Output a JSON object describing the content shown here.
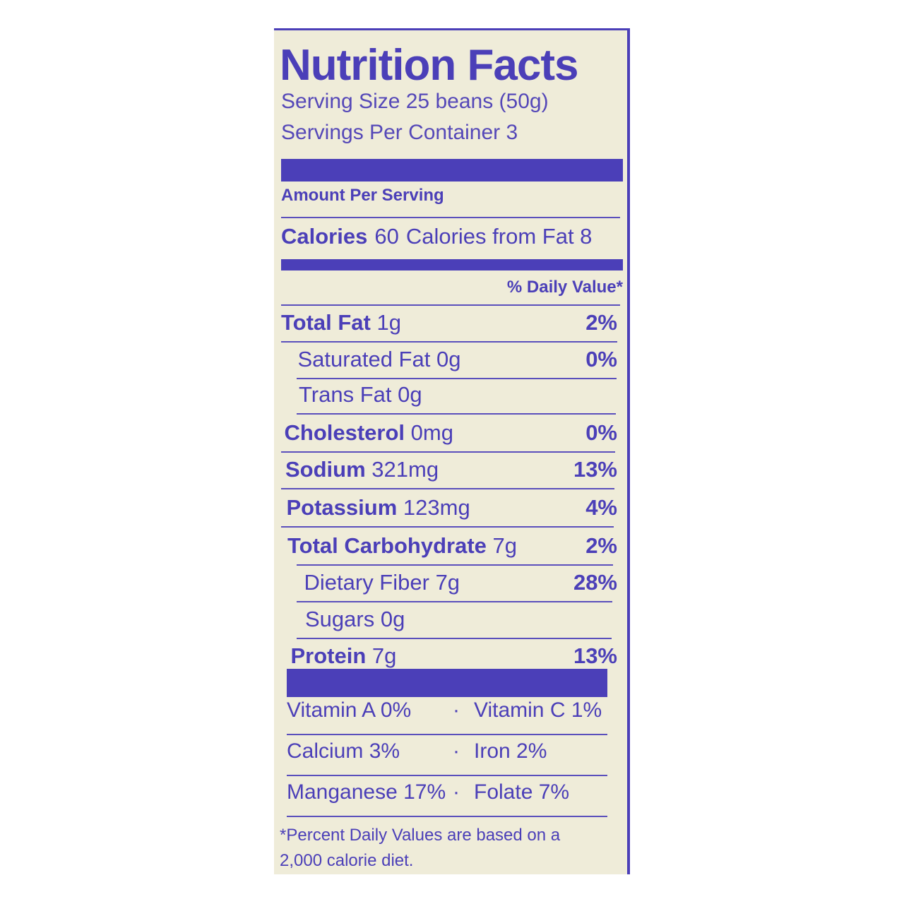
{
  "title": "Nutrition Facts",
  "serving_size": "Serving Size 25 beans (50g)",
  "servings_per_container": "Servings Per Container 3",
  "amount_per_serving": "Amount Per Serving",
  "calories": {
    "label": "Calories",
    "value": "60",
    "from_fat": "Calories from Fat 8"
  },
  "daily_value_header": "% Daily Value*",
  "nutrients": [
    {
      "name": "Total Fat",
      "amount": "1g",
      "dv": "2%",
      "bold": true
    },
    {
      "name": "Saturated Fat",
      "amount": "0g",
      "dv": "0%",
      "bold": false
    },
    {
      "name": "Trans Fat",
      "amount": "0g",
      "dv": "",
      "bold": false
    },
    {
      "name": "Cholesterol",
      "amount": "0mg",
      "dv": "0%",
      "bold": true
    },
    {
      "name": "Sodium",
      "amount": "321mg",
      "dv": "13%",
      "bold": true
    },
    {
      "name": "Potassium",
      "amount": "123mg",
      "dv": "4%",
      "bold": true
    },
    {
      "name": "Total Carbohydrate",
      "amount": "7g",
      "dv": "2%",
      "bold": true
    },
    {
      "name": "Dietary Fiber",
      "amount": "7g",
      "dv": "28%",
      "bold": false
    },
    {
      "name": "Sugars",
      "amount": "0g",
      "dv": "",
      "bold": false
    },
    {
      "name": "Protein",
      "amount": "7g",
      "dv": "13%",
      "bold": true
    }
  ],
  "vitamins": [
    {
      "left": "Vitamin A 0%",
      "sep": "·",
      "right": "Vitamin C 1%"
    },
    {
      "left": "Calcium 3%",
      "sep": "·",
      "right": "Iron 2%"
    },
    {
      "left": "Manganese 17%",
      "sep": "·",
      "right": "Folate 7%"
    }
  ],
  "footnote": [
    "*Percent Daily Values are based on a",
    "2,000 calorie diet."
  ],
  "colors": {
    "ink": "#4b3fb8",
    "background": "#efecd9"
  }
}
